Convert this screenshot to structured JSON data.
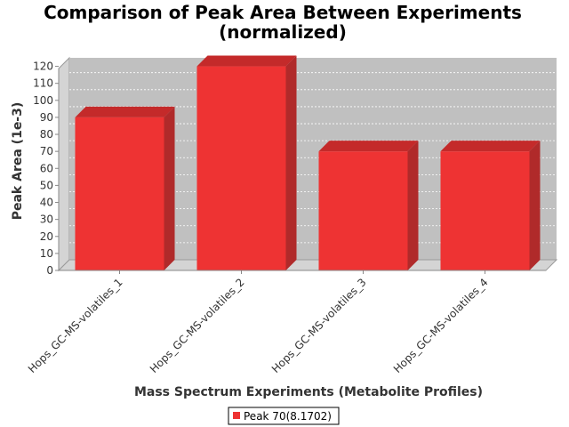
{
  "chart_data": {
    "type": "bar",
    "title_lines": [
      "Comparison of Peak Area Between Experiments",
      "(normalized)"
    ],
    "xlabel": "Mass Spectrum Experiments (Metabolite Profiles)",
    "ylabel": "Peak Area (1e-3)",
    "categories": [
      "Hops_GC-MS-volatiles_1",
      "Hops_GC-MS-volatiles_2",
      "Hops_GC-MS-volatiles_3",
      "Hops_GC-MS-volatiles_4"
    ],
    "series": [
      {
        "name": "Peak 70(8.1702)",
        "values": [
          90,
          120,
          70,
          70
        ],
        "color": "#ee3333"
      }
    ],
    "ylim": [
      0,
      125
    ],
    "yticks": [
      0,
      10,
      20,
      30,
      40,
      50,
      60,
      70,
      80,
      90,
      100,
      110,
      120
    ],
    "grid": true,
    "legend_position": "bottom-center",
    "plot_background": "#c0c0c0",
    "three_d": true
  }
}
